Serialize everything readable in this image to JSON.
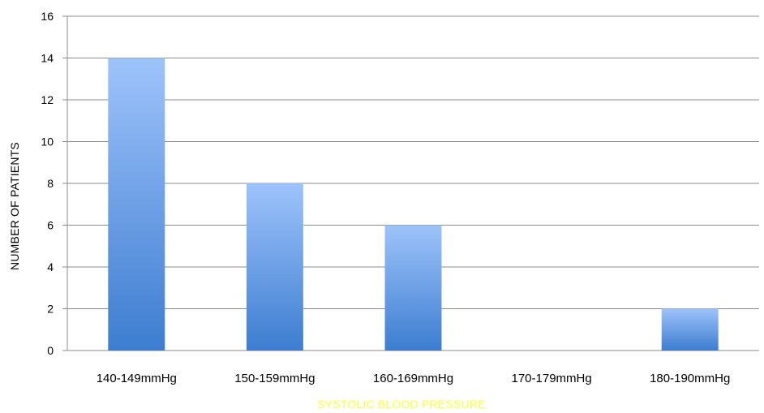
{
  "chart_data": {
    "type": "bar",
    "title": "",
    "categories": [
      "140-149mmHg",
      "150-159mmHg",
      "160-169mmHg",
      "170-179mmHg",
      "180-190mmHg"
    ],
    "values": [
      14,
      8,
      6,
      0,
      2
    ],
    "xlabel": "SYSTOLIC BLOOD PRESSURE",
    "ylabel": "NUMBER OF PATIENTS",
    "ylim": [
      0,
      16
    ],
    "yticks": [
      0,
      2,
      4,
      6,
      8,
      10,
      12,
      14,
      16
    ],
    "grid": true,
    "legend": "none",
    "colors": {
      "bar_top": "#9ec3fb",
      "bar_bottom": "#3d7dd0",
      "xlabel": "#ffff33",
      "grid": "#8c8c8c"
    }
  }
}
